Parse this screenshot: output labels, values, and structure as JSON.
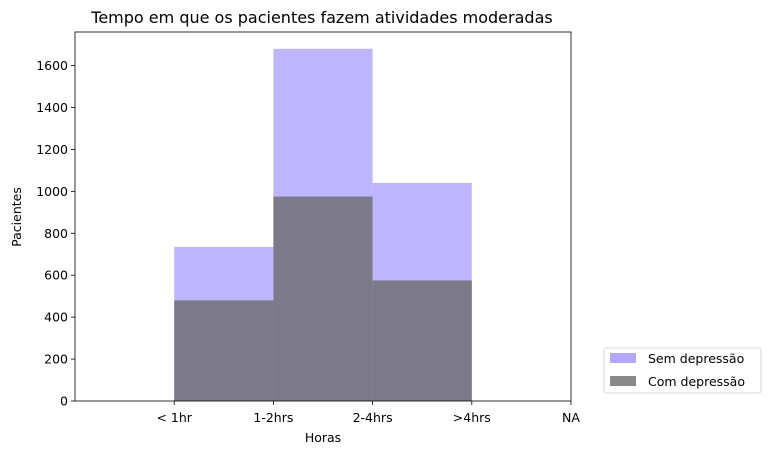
{
  "chart_data": {
    "type": "bar",
    "title": "Tempo em que os pacientes fazem atividades moderadas",
    "xlabel": "Horas",
    "ylabel": "Pacientes",
    "x_tick_labels": [
      "< 1hr",
      "1-2hrs",
      "2-4hrs",
      ">4hrs",
      "NA"
    ],
    "bins": [
      {
        "from": "< 1hr",
        "to": "1-2hrs"
      },
      {
        "from": "1-2hrs",
        "to": "2-4hrs"
      },
      {
        "from": "2-4hrs",
        "to": ">4hrs"
      }
    ],
    "series": [
      {
        "name": "Sem depressão",
        "color": "#b3a8ff",
        "values": [
          735,
          1680,
          1040
        ]
      },
      {
        "name": "Com depressão",
        "color": "#6b6b6b",
        "values": [
          480,
          975,
          575
        ]
      }
    ],
    "ylim": [
      0,
      1760
    ],
    "y_ticks": [
      0,
      200,
      400,
      600,
      800,
      1000,
      1200,
      1400,
      1600
    ],
    "legend_position": "lower-right outside",
    "grid": false
  }
}
